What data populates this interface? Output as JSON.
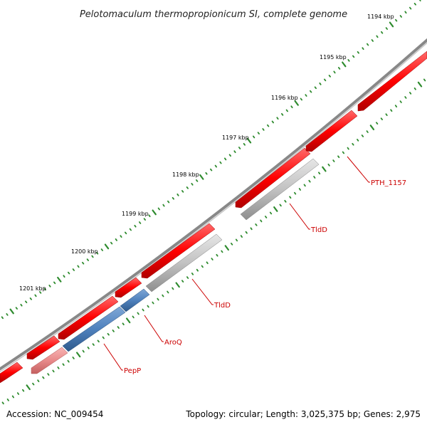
{
  "title": "Pelotomaculum thermopropionicum SI, complete genome",
  "accession": "Accession: NC_009454",
  "summary": "Topology: circular; Length: 3,025,375 bp; Genes: 2,975",
  "kbp_labels": [
    "1194 kbp",
    "1195 kbp",
    "1196 kbp",
    "1197 kbp",
    "1198 kbp",
    "1199 kbp",
    "1200 kbp",
    "1201 kbp"
  ],
  "gene_labels": [
    "PTH_1157",
    "TldD",
    "TldD",
    "AroQ",
    "PepP"
  ],
  "colors": {
    "forward_gene": "#ff0000",
    "reverse_gray": "#c0c0c0",
    "reverse_blue": "#4f81bd",
    "reverse_pink": "#e88a8a",
    "backbone": "#808080",
    "tick": "#2e8b2e",
    "label": "#cc0000"
  }
}
